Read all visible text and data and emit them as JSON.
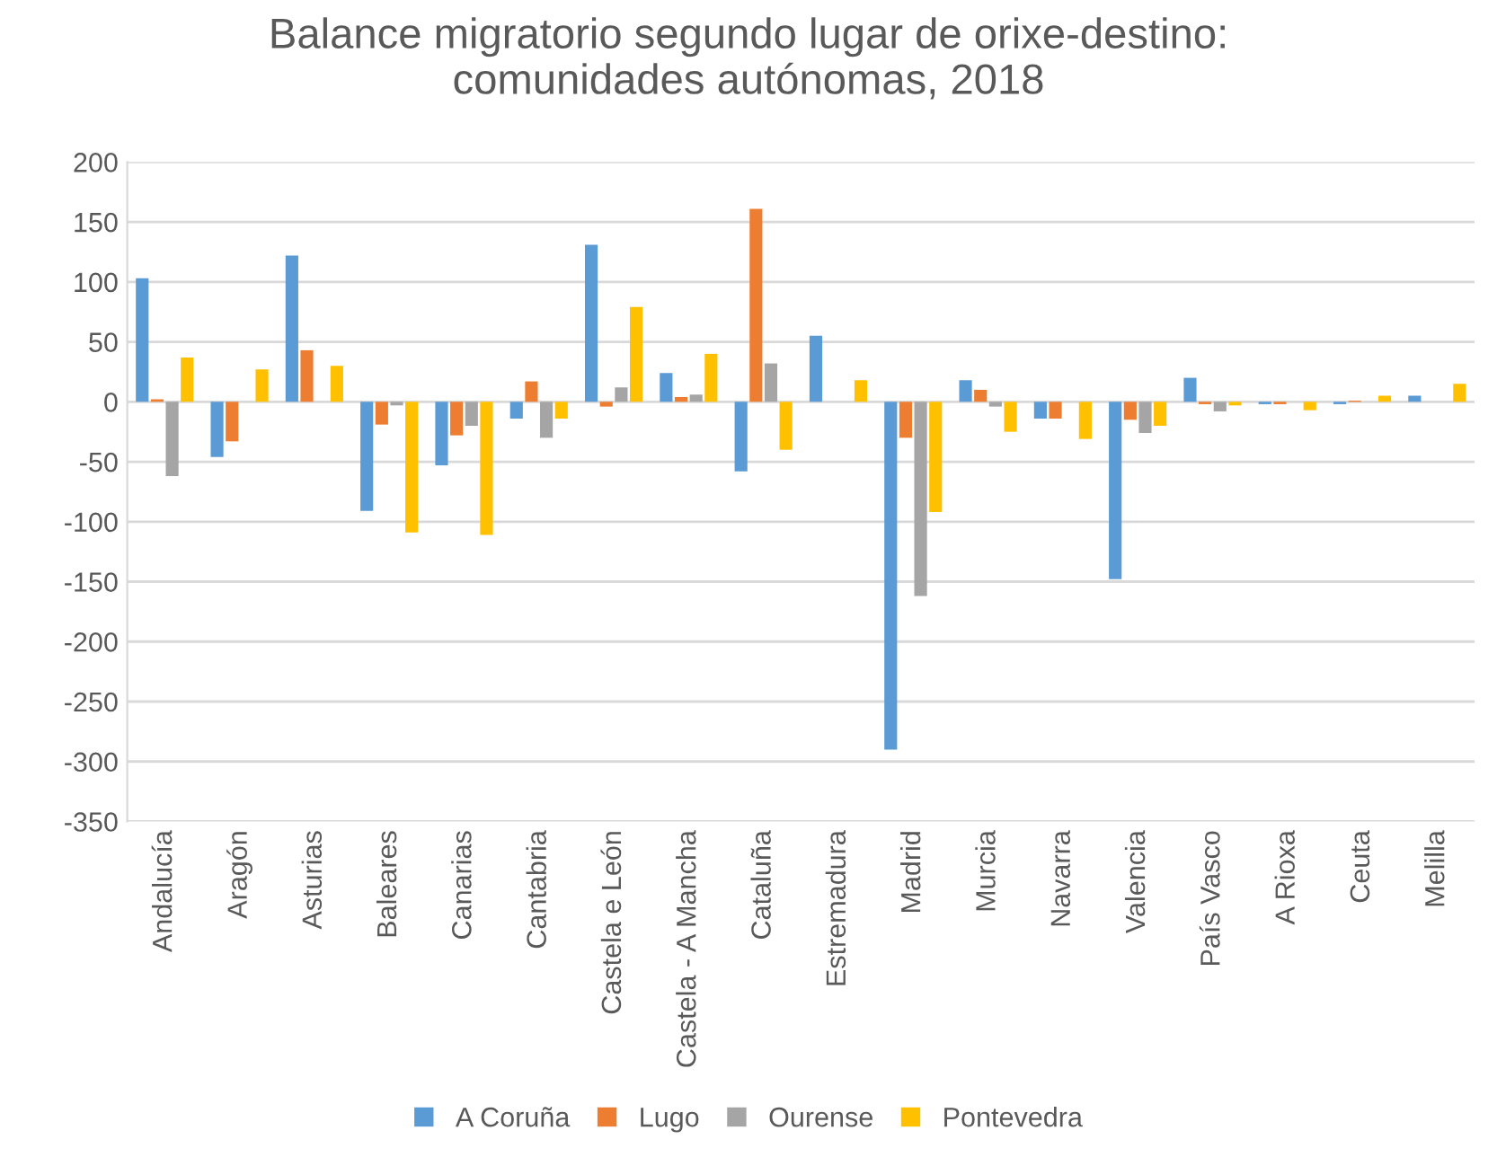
{
  "chart_data": {
    "type": "bar",
    "title": "Balance migratorio segundo lugar de orixe-destino:\ncomunidades autónomas, 2018",
    "categories": [
      "Andalucía",
      "Aragón",
      "Asturias",
      "Baleares",
      "Canarias",
      "Cantabria",
      "Castela e León",
      "Castela - A Mancha",
      "Cataluña",
      "Estremadura",
      "Madrid",
      "Murcia",
      "Navarra",
      "Valencia",
      "País Vasco",
      "A Rioxa",
      "Ceuta",
      "Melilla"
    ],
    "series": [
      {
        "name": "A Coruña",
        "color": "#5b9bd5",
        "values": [
          103,
          -46,
          122,
          -91,
          -53,
          -14,
          131,
          24,
          -58,
          55,
          -290,
          18,
          -14,
          -148,
          20,
          -2,
          -2,
          5
        ]
      },
      {
        "name": "Lugo",
        "color": "#ed7d31",
        "values": [
          2,
          -33,
          43,
          -19,
          -28,
          17,
          -4,
          4,
          161,
          0,
          -30,
          10,
          -14,
          -15,
          -2,
          -2,
          1,
          0
        ]
      },
      {
        "name": "Ourense",
        "color": "#a5a5a5",
        "values": [
          -62,
          0,
          null,
          -3,
          -20,
          -30,
          12,
          6,
          32,
          0,
          -162,
          -4,
          null,
          -26,
          -8,
          0,
          null,
          null
        ]
      },
      {
        "name": "Pontevedra",
        "color": "#ffc000",
        "values": [
          37,
          27,
          30,
          -109,
          -111,
          -14,
          79,
          40,
          -40,
          18,
          -92,
          -25,
          -31,
          -20,
          -3,
          -7,
          5,
          15
        ]
      }
    ],
    "ylim": [
      -350,
      200
    ],
    "yticks": [
      -350,
      -300,
      -250,
      -200,
      -150,
      -100,
      -50,
      0,
      50,
      100,
      150,
      200
    ],
    "grid": "y",
    "legend": "bottom"
  }
}
